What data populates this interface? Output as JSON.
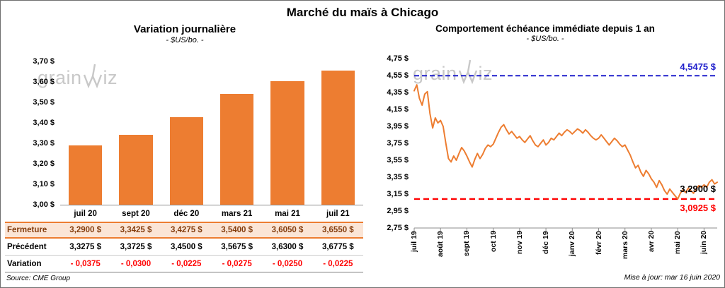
{
  "page": {
    "title": "Marché du maïs à Chicago",
    "source": "Source: CME Group",
    "updated": "Mise à jour: mar 16 juin 2020"
  },
  "watermark": {
    "text_left": "grain",
    "text_right": "iz"
  },
  "colors": {
    "orange": "#ED7D31",
    "blue": "#2020CC",
    "red": "#FF0000",
    "fermeture_bg": "#FBE5D6",
    "fermeture_text": "#843C0C"
  },
  "chart_data": [
    {
      "type": "bar",
      "title": "Variation journalière",
      "subtitle": "- $US/bo. -",
      "categories": [
        "juil 20",
        "sept 20",
        "déc 20",
        "mars 21",
        "mai 21",
        "juil 21"
      ],
      "values": [
        3.29,
        3.3425,
        3.4275,
        3.54,
        3.605,
        3.655
      ],
      "ylim": [
        3.0,
        3.7
      ],
      "ytick_step": 0.1,
      "ytick_labels": [
        "3,00 $",
        "3,10 $",
        "3,20 $",
        "3,30 $",
        "3,40 $",
        "3,50 $",
        "3,60 $",
        "3,70 $"
      ],
      "grid": false,
      "bar_color": "#ED7D31",
      "table": {
        "rows": [
          {
            "label": "Fermeture",
            "values": [
              "3,2900  $",
              "3,3425  $",
              "3,4275  $",
              "3,5400  $",
              "3,6050  $",
              "3,6550  $"
            ]
          },
          {
            "label": "Précédent",
            "values": [
              "3,3275  $",
              "3,3725  $",
              "3,4500  $",
              "3,5675  $",
              "3,6300  $",
              "3,6775  $"
            ]
          },
          {
            "label": "Variation",
            "values": [
              "- 0,0375",
              "- 0,0300",
              "- 0,0225",
              "- 0,0275",
              "- 0,0250",
              "- 0,0225"
            ]
          }
        ]
      }
    },
    {
      "type": "line",
      "title": "Comportement échéance immédiate depuis 1 an",
      "subtitle": "- $US/bo. -",
      "x_labels": [
        "juil 19",
        "août 19",
        "sept 19",
        "oct 19",
        "nov 19",
        "déc 19",
        "janv 20",
        "févr 20",
        "mars 20",
        "avr 20",
        "mai 20",
        "juin 20"
      ],
      "ylim": [
        2.75,
        4.75
      ],
      "ytick_step": 0.2,
      "ytick_labels": [
        "2,75 $",
        "2,95 $",
        "3,15 $",
        "3,35 $",
        "3,55 $",
        "3,75 $",
        "3,95 $",
        "4,15 $",
        "4,35 $",
        "4,55 $",
        "4,75 $"
      ],
      "grid": false,
      "line_color": "#ED7D31",
      "high_line": {
        "value": 4.5475,
        "label": "4,5475 $"
      },
      "low_line": {
        "value": 3.0925,
        "label": "3,0925 $"
      },
      "last_label": {
        "value": 3.29,
        "label": "3,2900 $"
      },
      "values": [
        4.37,
        4.44,
        4.28,
        4.2,
        4.33,
        4.36,
        4.1,
        3.93,
        4.05,
        3.99,
        4.02,
        3.95,
        3.75,
        3.57,
        3.53,
        3.6,
        3.55,
        3.63,
        3.7,
        3.66,
        3.6,
        3.53,
        3.47,
        3.56,
        3.63,
        3.57,
        3.62,
        3.69,
        3.73,
        3.71,
        3.74,
        3.81,
        3.88,
        3.94,
        3.97,
        3.91,
        3.86,
        3.89,
        3.85,
        3.81,
        3.83,
        3.79,
        3.76,
        3.8,
        3.84,
        3.78,
        3.73,
        3.71,
        3.75,
        3.79,
        3.73,
        3.76,
        3.81,
        3.79,
        3.83,
        3.87,
        3.84,
        3.88,
        3.91,
        3.89,
        3.86,
        3.89,
        3.92,
        3.9,
        3.87,
        3.91,
        3.88,
        3.84,
        3.81,
        3.79,
        3.81,
        3.85,
        3.81,
        3.77,
        3.73,
        3.77,
        3.81,
        3.78,
        3.74,
        3.71,
        3.73,
        3.67,
        3.61,
        3.53,
        3.46,
        3.49,
        3.41,
        3.36,
        3.43,
        3.39,
        3.33,
        3.29,
        3.23,
        3.31,
        3.26,
        3.19,
        3.15,
        3.21,
        3.17,
        3.13,
        3.0925,
        3.16,
        3.2,
        3.17,
        3.22,
        3.19,
        3.16,
        3.21,
        3.25,
        3.23,
        3.26,
        3.23,
        3.29,
        3.32,
        3.27,
        3.29
      ]
    }
  ]
}
